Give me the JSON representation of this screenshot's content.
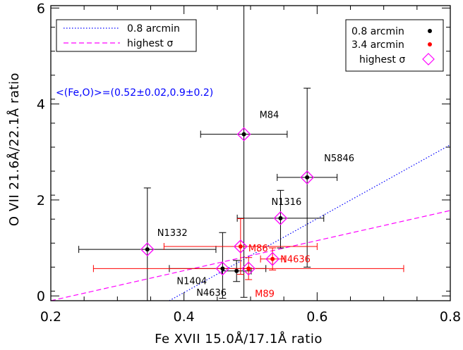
{
  "chart_data": {
    "type": "scatter",
    "xlabel": "Fe XVII 15.0Å/17.1Å ratio",
    "ylabel": "O VII 21.6Å/22.1Å ratio",
    "xlim": [
      0.2,
      0.8
    ],
    "ylim": [
      -0.1,
      6.05
    ],
    "xticks": [
      0.2,
      0.4,
      0.6,
      0.8
    ],
    "xtick_labels": [
      "0.2",
      "0.4",
      "0.6",
      "0.8"
    ],
    "yticks": [
      0,
      2,
      4,
      6
    ],
    "ytick_labels": [
      "0",
      "2",
      "4",
      "6"
    ],
    "grid": false,
    "colors": {
      "black": "#000000",
      "red": "#ff0000",
      "magenta": "#ff00ff",
      "blue": "#0000ff"
    },
    "series": [
      {
        "name": "0.8 arcmin",
        "color": "#000000",
        "points": [
          {
            "label": "M84",
            "x": 0.49,
            "y": 3.37,
            "xerr": [
              0.065,
              0.065
            ],
            "yerr": [
              3.4,
              2.8
            ],
            "highest": true
          },
          {
            "label": "N5846",
            "x": 0.585,
            "y": 2.47,
            "xerr": [
              0.045,
              0.045
            ],
            "yerr": [
              1.87,
              1.86
            ],
            "highest": true
          },
          {
            "label": "N1316",
            "x": 0.545,
            "y": 1.62,
            "xerr": [
              0.065,
              0.065
            ],
            "yerr": [
              0.62,
              0.58
            ],
            "highest": true
          },
          {
            "label": "N1332",
            "x": 0.345,
            "y": 0.97,
            "xerr": [
              0.103,
              0.103
            ],
            "yerr": [
              1.07,
              1.28
            ],
            "highest": true
          },
          {
            "label": "N1404",
            "x": 0.458,
            "y": 0.57,
            "xerr": [
              0.08,
              0.065
            ],
            "yerr": [
              0.62,
              0.75
            ],
            "highest": true
          },
          {
            "label": "N4636",
            "x": 0.479,
            "y": 0.52,
            "xerr": [
              0.022,
              0.022
            ],
            "yerr": [
              0.22,
              0.22
            ],
            "highest": false
          }
        ]
      },
      {
        "name": "3.4 arcmin",
        "color": "#ff0000",
        "points": [
          {
            "label": "M86",
            "x": 0.485,
            "y": 1.03,
            "xerr": [
              0.115,
              0.115
            ],
            "yerr": [
              0.58,
              0.58
            ],
            "highest": true
          },
          {
            "label": "N4636",
            "x": 0.533,
            "y": 0.77,
            "xerr": [
              0.018,
              0.018
            ],
            "yerr": [
              0.23,
              0.23
            ],
            "highest": true
          },
          {
            "label": "M89",
            "x": 0.497,
            "y": 0.57,
            "xerr": [
              0.233,
              0.233
            ],
            "yerr": [
              0.23,
              0.23
            ],
            "highest": true
          }
        ]
      }
    ],
    "fits": [
      {
        "name": "0.8 arcmin",
        "style": "dotted",
        "color": "#0000ff",
        "x": [
          0.378,
          0.8
        ],
        "y": [
          -0.1,
          3.15
        ]
      },
      {
        "name": "highest σ",
        "style": "dashed",
        "color": "#ff00ff",
        "x": [
          0.2,
          0.8
        ],
        "y": [
          -0.1,
          1.78
        ]
      }
    ],
    "annotation": {
      "text": "<(Fe,O)>=(0.52±0.02,0.9±0.2)",
      "color": "#0000ff"
    },
    "legend_lines": {
      "position": "top-left",
      "entries": [
        {
          "label": "0.8 arcmin",
          "style": "dotted",
          "color": "#0000ff"
        },
        {
          "label": "highest σ",
          "style": "dashed",
          "color": "#ff00ff"
        }
      ]
    },
    "legend_markers": {
      "position": "top-right",
      "entries": [
        {
          "label": "0.8 arcmin",
          "marker": "dot",
          "color": "#000000"
        },
        {
          "label": "3.4 arcmin",
          "marker": "dot",
          "color": "#ff0000"
        },
        {
          "label": "highest σ",
          "marker": "diamond",
          "color": "#ff00ff"
        }
      ]
    }
  }
}
